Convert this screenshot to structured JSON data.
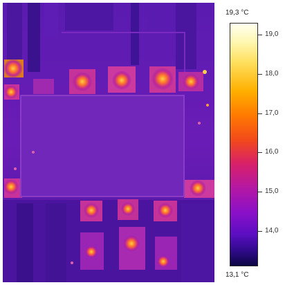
{
  "thermal_image": {
    "name": "infrared thermal image of circuit board",
    "palette": "iron"
  },
  "scale": {
    "max_label": "19,3 °C",
    "min_label": "13,1 °C",
    "ticks": [
      "19,0",
      "18,0",
      "17,0",
      "16,0",
      "15,0",
      "14,0"
    ],
    "tick_values": [
      19.0,
      18.0,
      17.0,
      16.0,
      15.0,
      14.0
    ],
    "min_value": 13.1,
    "max_value": 19.3
  }
}
